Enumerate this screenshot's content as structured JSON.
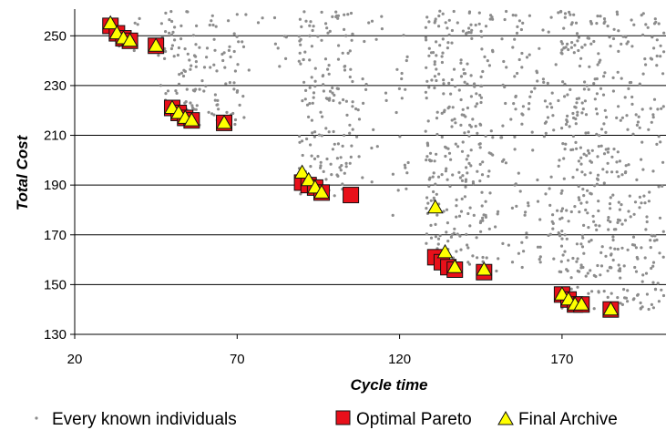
{
  "chart_data": {
    "type": "scatter",
    "xlabel": "Cycle time",
    "ylabel": "Total Cost",
    "xlim": [
      20,
      202
    ],
    "ylim": [
      130,
      260
    ],
    "x_ticks": [
      20,
      70,
      120,
      170
    ],
    "y_ticks": [
      130,
      150,
      170,
      190,
      210,
      230,
      250
    ],
    "grid": "horizontal",
    "legend_position": "bottom",
    "colors": {
      "background_points": "#8c8c8c",
      "pareto_fill": "#e8101a",
      "pareto_stroke": "#111111",
      "archive_fill": "#ffff00",
      "archive_stroke": "#111111",
      "gridline": "#000000"
    },
    "series": [
      {
        "name": "Every known individuals",
        "marker": "dot",
        "clusters": [
          {
            "x": [
              32,
              42
            ],
            "y": [
              244,
              260
            ],
            "density": 0.25
          },
          {
            "x": [
              45,
              52
            ],
            "y": [
              222,
              260
            ],
            "density": 0.6
          },
          {
            "x": [
              52,
              60
            ],
            "y": [
              214,
              260
            ],
            "density": 0.7
          },
          {
            "x": [
              60,
              73
            ],
            "y": [
              214,
              260
            ],
            "density": 0.55
          },
          {
            "x": [
              73,
              88
            ],
            "y": [
              236,
              260
            ],
            "density": 0.15
          },
          {
            "x": [
              89,
              94
            ],
            "y": [
              185,
              260
            ],
            "density": 0.8
          },
          {
            "x": [
              94,
              106
            ],
            "y": [
              185,
              260
            ],
            "density": 0.65
          },
          {
            "x": [
              106,
              112
            ],
            "y": [
              185,
              260
            ],
            "density": 0.2
          },
          {
            "x": [
              112,
              123
            ],
            "y": [
              175,
              260
            ],
            "density": 0.15
          },
          {
            "x": [
              128,
              134
            ],
            "y": [
              158,
              260
            ],
            "density": 0.85
          },
          {
            "x": [
              134,
              146
            ],
            "y": [
              155,
              260
            ],
            "density": 0.75
          },
          {
            "x": [
              146,
              160
            ],
            "y": [
              155,
              260
            ],
            "density": 0.35
          },
          {
            "x": [
              160,
              169
            ],
            "y": [
              150,
              260
            ],
            "density": 0.3
          },
          {
            "x": [
              169,
              175
            ],
            "y": [
              140,
              260
            ],
            "density": 0.8
          },
          {
            "x": [
              175,
              186
            ],
            "y": [
              140,
              260
            ],
            "density": 0.7
          },
          {
            "x": [
              186,
              202
            ],
            "y": [
              140,
              260
            ],
            "density": 0.55
          }
        ]
      },
      {
        "name": "Optimal Pareto",
        "marker": "square",
        "points": [
          [
            31,
            254
          ],
          [
            33,
            251
          ],
          [
            35,
            249
          ],
          [
            37,
            248
          ],
          [
            45,
            246
          ],
          [
            50,
            221
          ],
          [
            52,
            219
          ],
          [
            54,
            217
          ],
          [
            56,
            216
          ],
          [
            66,
            215
          ],
          [
            90,
            191
          ],
          [
            92,
            190
          ],
          [
            94,
            189
          ],
          [
            96,
            187
          ],
          [
            105,
            186
          ],
          [
            131,
            161
          ],
          [
            133,
            159
          ],
          [
            135,
            157
          ],
          [
            137,
            156
          ],
          [
            146,
            155
          ],
          [
            170,
            146
          ],
          [
            172,
            144
          ],
          [
            174,
            142
          ],
          [
            176,
            142
          ],
          [
            185,
            140
          ]
        ]
      },
      {
        "name": "Final Archive",
        "marker": "triangle",
        "points": [
          [
            31,
            255
          ],
          [
            33,
            251
          ],
          [
            35,
            249
          ],
          [
            37,
            248
          ],
          [
            45,
            246
          ],
          [
            50,
            221
          ],
          [
            52,
            219
          ],
          [
            54,
            217
          ],
          [
            56,
            216
          ],
          [
            66,
            215
          ],
          [
            90,
            195
          ],
          [
            92,
            192
          ],
          [
            94,
            189
          ],
          [
            96,
            187
          ],
          [
            131,
            181
          ],
          [
            134,
            163
          ],
          [
            137,
            157
          ],
          [
            146,
            156
          ],
          [
            170,
            146
          ],
          [
            172,
            144
          ],
          [
            174,
            142
          ],
          [
            176,
            142
          ],
          [
            185,
            140
          ]
        ]
      }
    ],
    "legend": [
      {
        "label": "Every known individuals",
        "marker": "dot"
      },
      {
        "label": "Optimal Pareto",
        "marker": "square"
      },
      {
        "label": "Final Archive",
        "marker": "triangle"
      }
    ]
  }
}
